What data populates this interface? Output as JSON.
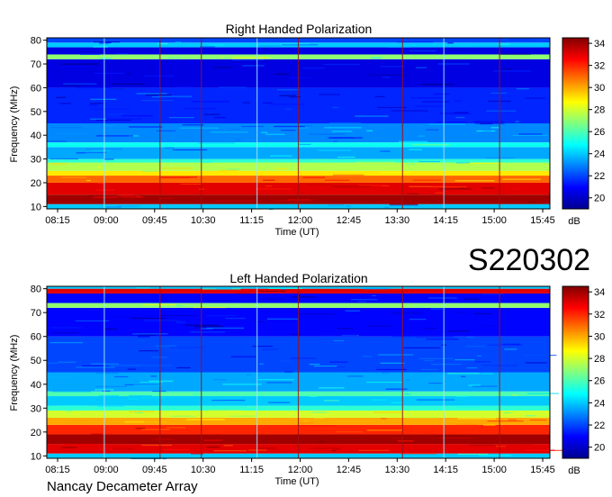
{
  "chart_data": [
    {
      "type": "heatmap",
      "title": "Right Handed Polarization",
      "xlabel": "Time (UT)",
      "ylabel": "Frequency (MHz)",
      "x_ticks": [
        "08:15",
        "09:00",
        "09:45",
        "10:30",
        "11:15",
        "12:00",
        "12:45",
        "13:30",
        "14:15",
        "15:00",
        "15:45"
      ],
      "y_ticks": [
        10,
        20,
        30,
        40,
        50,
        60,
        70,
        80
      ],
      "ylim": [
        9,
        81
      ],
      "colorbar": {
        "label": "dB",
        "ticks": [
          20,
          22,
          24,
          26,
          28,
          30,
          32,
          34
        ],
        "range": [
          19,
          34.5
        ],
        "colormap": "jet"
      },
      "bands": [
        {
          "f0": 9,
          "f1": 11,
          "db": 24
        },
        {
          "f0": 11,
          "f1": 15,
          "db": 34
        },
        {
          "f0": 15,
          "f1": 20,
          "db": 33
        },
        {
          "f0": 20,
          "f1": 23,
          "db": 31
        },
        {
          "f0": 23,
          "f1": 25,
          "db": 29
        },
        {
          "f0": 25,
          "f1": 28.5,
          "db": 27.5
        },
        {
          "f0": 28.5,
          "f1": 30,
          "db": 25.5
        },
        {
          "f0": 30,
          "f1": 35,
          "db": 23.5
        },
        {
          "f0": 35,
          "f1": 37,
          "db": 25
        },
        {
          "f0": 37,
          "f1": 45,
          "db": 23
        },
        {
          "f0": 45,
          "f1": 60,
          "db": 21.5
        },
        {
          "f0": 60,
          "f1": 72,
          "db": 20.5
        },
        {
          "f0": 72,
          "f1": 74,
          "db": 27
        },
        {
          "f0": 74,
          "f1": 77,
          "db": 20.5
        },
        {
          "f0": 77,
          "f1": 79,
          "db": 24
        },
        {
          "f0": 79,
          "f1": 81,
          "db": 22
        }
      ]
    },
    {
      "type": "heatmap",
      "title": "Left Handed Polarization",
      "xlabel": "Time (UT)",
      "ylabel": "Frequency (MHz)",
      "x_ticks": [
        "08:15",
        "09:00",
        "09:45",
        "10:30",
        "11:15",
        "12:00",
        "12:45",
        "13:30",
        "14:15",
        "15:00",
        "15:45"
      ],
      "y_ticks": [
        10,
        20,
        30,
        40,
        50,
        60,
        70,
        80
      ],
      "ylim": [
        9,
        81
      ],
      "colorbar": {
        "label": "dB",
        "ticks": [
          20,
          22,
          24,
          26,
          28,
          30,
          32,
          34
        ],
        "range": [
          19,
          34.5
        ],
        "colormap": "jet"
      },
      "bands": [
        {
          "f0": 9,
          "f1": 11,
          "db": 24
        },
        {
          "f0": 11,
          "f1": 15,
          "db": 33
        },
        {
          "f0": 15,
          "f1": 19,
          "db": 34
        },
        {
          "f0": 19,
          "f1": 23,
          "db": 32
        },
        {
          "f0": 23,
          "f1": 26,
          "db": 30
        },
        {
          "f0": 26,
          "f1": 29,
          "db": 28
        },
        {
          "f0": 29,
          "f1": 31,
          "db": 25.5
        },
        {
          "f0": 31,
          "f1": 35,
          "db": 24
        },
        {
          "f0": 35,
          "f1": 37,
          "db": 26
        },
        {
          "f0": 37,
          "f1": 45,
          "db": 23.5
        },
        {
          "f0": 45,
          "f1": 60,
          "db": 22
        },
        {
          "f0": 60,
          "f1": 72,
          "db": 21
        },
        {
          "f0": 72,
          "f1": 74,
          "db": 27
        },
        {
          "f0": 74,
          "f1": 78,
          "db": 21
        },
        {
          "f0": 78,
          "f1": 80,
          "db": 33
        },
        {
          "f0": 80,
          "f1": 81,
          "db": 24
        }
      ]
    }
  ],
  "date_label": "S220302",
  "footer": "Nancay Decameter Array"
}
